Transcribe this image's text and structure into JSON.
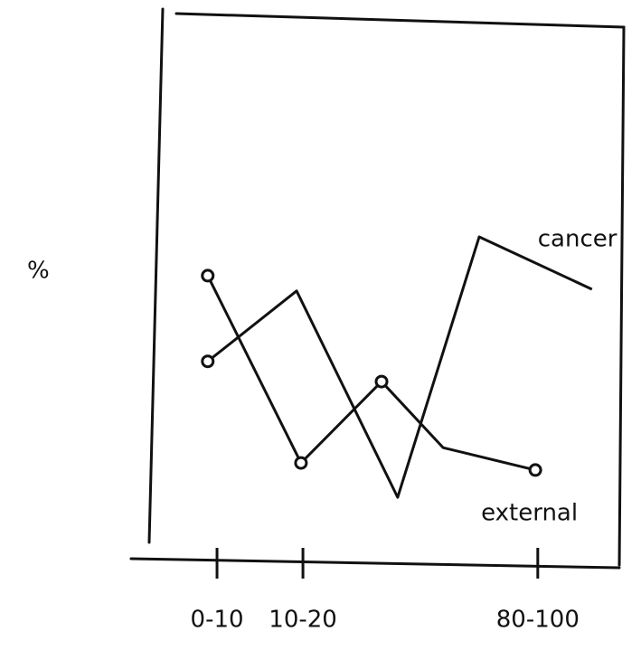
{
  "chart_data": {
    "type": "line",
    "y_label": "%",
    "xlim": [
      0,
      100
    ],
    "ylim": [
      0,
      100
    ],
    "xticks": [
      {
        "value": 17.6,
        "label": "0-10"
      },
      {
        "value": 35.2,
        "label": "10-20"
      },
      {
        "value": 83.3,
        "label": "80-100"
      }
    ],
    "series": [
      {
        "name": "cancer",
        "color": "#111111",
        "markers": [
          true,
          false,
          false,
          false,
          false
        ],
        "x": [
          15.7,
          33.9,
          54.6,
          71.3,
          94.4
        ],
        "values": [
          36.8,
          49.7,
          11.9,
          59.6,
          50.0
        ]
      },
      {
        "name": "external",
        "color": "#111111",
        "markers": [
          true,
          true,
          true,
          false,
          true
        ],
        "x": [
          15.7,
          34.8,
          51.3,
          63.9,
          82.8
        ],
        "values": [
          52.5,
          18.2,
          33.1,
          21.0,
          16.9
        ]
      }
    ]
  }
}
